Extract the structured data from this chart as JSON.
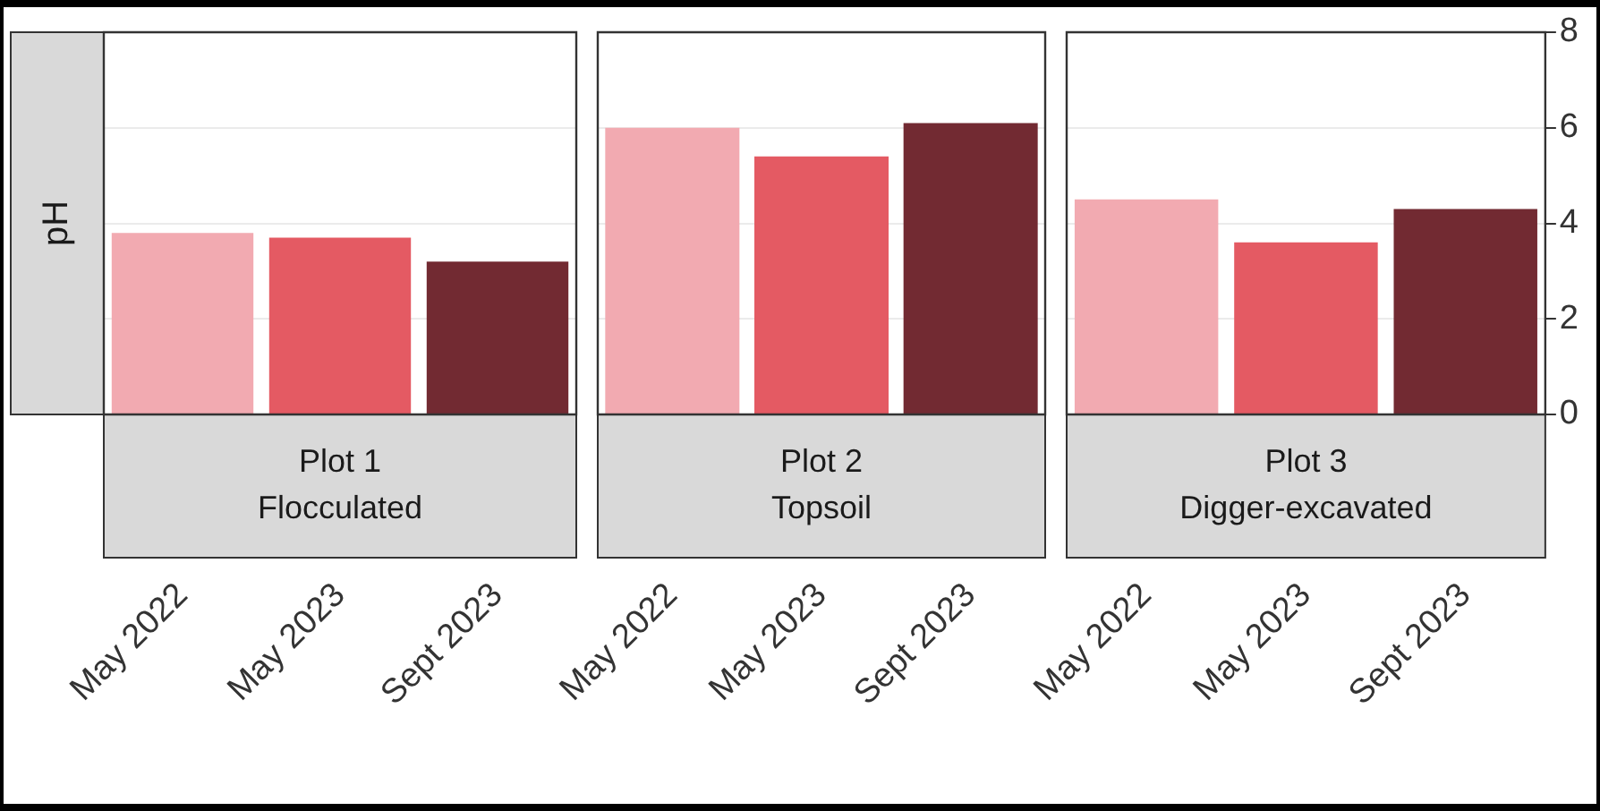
{
  "chart_data": [
    {
      "type": "bar",
      "title": "Plot 1\nFlocculated",
      "ylabel": "pH",
      "categories": [
        "May 2022",
        "May 2023",
        "Sept 2023"
      ],
      "values": [
        3.8,
        3.7,
        3.2
      ],
      "colors": [
        "#f2aab1",
        "#e45a63",
        "#722a32"
      ],
      "ylim": [
        0,
        8
      ],
      "yticks": [
        0,
        2,
        4,
        6,
        8
      ],
      "grid": "y",
      "tick_labels": "x"
    },
    {
      "type": "bar",
      "title": "Plot 2\nTopsoil",
      "categories": [
        "May 2022",
        "May 2023",
        "Sept 2023"
      ],
      "values": [
        6.0,
        5.4,
        6.1
      ],
      "colors": [
        "#f2aab1",
        "#e45a63",
        "#722a32"
      ],
      "ylim": [
        0,
        8
      ],
      "yticks": [
        0,
        2,
        4,
        6,
        8
      ],
      "grid": "y",
      "tick_labels": "x"
    },
    {
      "type": "bar",
      "title": "Plot 3\nDigger-excavated",
      "categories": [
        "May 2022",
        "May 2023",
        "Sept 2023"
      ],
      "values": [
        4.5,
        3.6,
        4.3
      ],
      "colors": [
        "#f2aab1",
        "#e45a63",
        "#722a32"
      ],
      "ylim": [
        0,
        8
      ],
      "yticks": [
        0,
        2,
        4,
        6,
        8
      ],
      "grid": "y"
    }
  ]
}
